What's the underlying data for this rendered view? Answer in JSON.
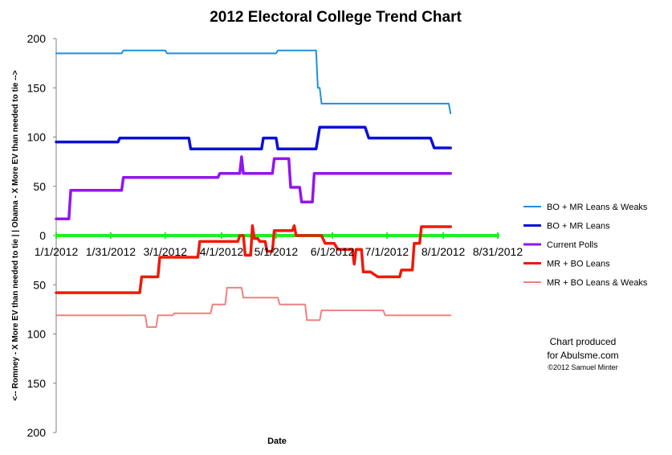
{
  "chart_data": {
    "type": "line",
    "title": "2012 Electoral College Trend Chart",
    "xlabel": "Date",
    "ylabel": "<-- Romney - X More EV than needed to tie | | Obama - X More EV than needed to tie -->",
    "x_tick_labels": [
      "1/1/2012",
      "1/31/2012",
      "3/1/2012",
      "4/1/2012",
      "5/1/2012",
      "6/1/2012",
      "7/1/2012",
      "8/1/2012",
      "8/31/2012"
    ],
    "y_tick_labels": [
      "200",
      "150",
      "100",
      "50",
      "0",
      "50",
      "100",
      "150",
      "200"
    ],
    "x_tick_days": [
      0,
      30,
      60,
      91,
      121,
      152,
      182,
      213,
      243
    ],
    "ylim": [
      -200,
      200
    ],
    "xlim_days": [
      0,
      243
    ],
    "grid": false,
    "legend_position": "right",
    "series": [
      {
        "name": "BO + MR Leans & Weaks",
        "color": "#1f8fdf",
        "points": [
          [
            0,
            185
          ],
          [
            36,
            185
          ],
          [
            37,
            188
          ],
          [
            60,
            188
          ],
          [
            61,
            185
          ],
          [
            121,
            185
          ],
          [
            122,
            188
          ],
          [
            143,
            188
          ],
          [
            144,
            150
          ],
          [
            145,
            150
          ],
          [
            146,
            134
          ],
          [
            216,
            134
          ],
          [
            217,
            124
          ]
        ]
      },
      {
        "name": "BO + MR Leans",
        "color": "#0a10d8",
        "points": [
          [
            0,
            95
          ],
          [
            34,
            95
          ],
          [
            35,
            99
          ],
          [
            73,
            99
          ],
          [
            74,
            88
          ],
          [
            113,
            88
          ],
          [
            114,
            99
          ],
          [
            121,
            99
          ],
          [
            122,
            88
          ],
          [
            143,
            88
          ],
          [
            145,
            110
          ],
          [
            170,
            110
          ],
          [
            172,
            99
          ],
          [
            206,
            99
          ],
          [
            208,
            89
          ],
          [
            217,
            89
          ]
        ]
      },
      {
        "name": "Current Polls",
        "color": "#9315ee",
        "points": [
          [
            0,
            17
          ],
          [
            7,
            17
          ],
          [
            8,
            46
          ],
          [
            36,
            46
          ],
          [
            37,
            59
          ],
          [
            89,
            59
          ],
          [
            90,
            63
          ],
          [
            101,
            63
          ],
          [
            102,
            80
          ],
          [
            103,
            63
          ],
          [
            119,
            63
          ],
          [
            120,
            78
          ],
          [
            128,
            78
          ],
          [
            129,
            49
          ],
          [
            134,
            49
          ],
          [
            135,
            34
          ],
          [
            141,
            34
          ],
          [
            142,
            63
          ],
          [
            217,
            63
          ]
        ]
      },
      {
        "name": "MR + BO Leans",
        "color": "#ee1a0a",
        "points": [
          [
            0,
            -58
          ],
          [
            46,
            -58
          ],
          [
            47,
            -42
          ],
          [
            56,
            -42
          ],
          [
            57,
            -22
          ],
          [
            78,
            -22
          ],
          [
            79,
            -6
          ],
          [
            100,
            -6
          ],
          [
            101,
            0
          ],
          [
            103,
            0
          ],
          [
            104,
            -20
          ],
          [
            107,
            -20
          ],
          [
            108,
            10
          ],
          [
            109,
            -3
          ],
          [
            111,
            -3
          ],
          [
            112,
            -6
          ],
          [
            115,
            -6
          ],
          [
            116,
            -16
          ],
          [
            119,
            -16
          ],
          [
            120,
            5
          ],
          [
            130,
            5
          ],
          [
            131,
            10
          ],
          [
            132,
            0
          ],
          [
            146,
            0
          ],
          [
            148,
            -8
          ],
          [
            153,
            -8
          ],
          [
            155,
            -14
          ],
          [
            163,
            -14
          ],
          [
            164,
            -29
          ],
          [
            165,
            -14
          ],
          [
            168,
            -14
          ],
          [
            169,
            -37
          ],
          [
            173,
            -37
          ],
          [
            177,
            -42
          ],
          [
            189,
            -42
          ],
          [
            190,
            -35
          ],
          [
            196,
            -35
          ],
          [
            197,
            -8
          ],
          [
            200,
            -8
          ],
          [
            201,
            9
          ],
          [
            217,
            9
          ]
        ]
      },
      {
        "name": "MR + BO Leans & Weaks",
        "color": "#f08080",
        "points": [
          [
            0,
            -81
          ],
          [
            49,
            -81
          ],
          [
            50,
            -93
          ],
          [
            55,
            -93
          ],
          [
            56,
            -81
          ],
          [
            64,
            -81
          ],
          [
            65,
            -79
          ],
          [
            85,
            -79
          ],
          [
            86,
            -70
          ],
          [
            93,
            -70
          ],
          [
            94,
            -53
          ],
          [
            102,
            -53
          ],
          [
            103,
            -63
          ],
          [
            122,
            -63
          ],
          [
            123,
            -70
          ],
          [
            137,
            -70
          ],
          [
            138,
            -86
          ],
          [
            145,
            -86
          ],
          [
            146,
            -76
          ],
          [
            180,
            -76
          ],
          [
            181,
            -81
          ],
          [
            217,
            -81
          ]
        ]
      }
    ],
    "zero_line": {
      "color": "#22ee22",
      "y": 0
    },
    "credit": [
      "Chart produced",
      "for Abulsme.com",
      "©2012 Samuel Minter"
    ]
  }
}
